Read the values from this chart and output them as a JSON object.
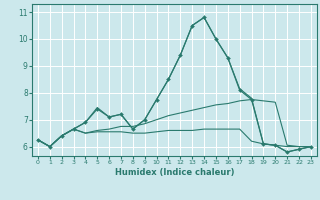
{
  "xlabel": "Humidex (Indice chaleur)",
  "background_color": "#cce8ec",
  "grid_color": "#ffffff",
  "line_color": "#2a7a6e",
  "xlim": [
    -0.5,
    23.5
  ],
  "ylim": [
    5.65,
    11.3
  ],
  "xticks": [
    0,
    1,
    2,
    3,
    4,
    5,
    6,
    7,
    8,
    9,
    10,
    11,
    12,
    13,
    14,
    15,
    16,
    17,
    18,
    19,
    20,
    21,
    22,
    23
  ],
  "yticks": [
    6,
    7,
    8,
    9,
    10,
    11
  ],
  "series_main": [
    6.25,
    6.0,
    6.4,
    6.65,
    6.9,
    7.4,
    7.1,
    7.2,
    6.65,
    7.0,
    7.75,
    8.5,
    9.4,
    10.5,
    10.8,
    10.0,
    9.3,
    8.1,
    7.75,
    6.1,
    6.05,
    5.8,
    5.9,
    6.0
  ],
  "series_diag": [
    6.25,
    6.0,
    6.4,
    6.65,
    6.5,
    6.6,
    6.65,
    6.75,
    6.75,
    6.85,
    7.0,
    7.15,
    7.25,
    7.35,
    7.45,
    7.55,
    7.6,
    7.7,
    7.75,
    7.7,
    7.65,
    6.05,
    6.0,
    6.0
  ],
  "series_flat": [
    6.25,
    6.0,
    6.4,
    6.65,
    6.5,
    6.55,
    6.55,
    6.55,
    6.5,
    6.5,
    6.55,
    6.6,
    6.6,
    6.6,
    6.65,
    6.65,
    6.65,
    6.65,
    6.2,
    6.1,
    6.05,
    6.0,
    6.0,
    6.0
  ],
  "series_peak2": [
    6.25,
    6.0,
    6.4,
    6.65,
    6.9,
    7.45,
    7.1,
    7.2,
    6.65,
    7.0,
    7.75,
    8.5,
    9.4,
    10.5,
    10.8,
    10.0,
    9.3,
    8.15,
    7.8,
    6.1,
    6.05,
    5.8,
    5.9,
    6.0
  ]
}
